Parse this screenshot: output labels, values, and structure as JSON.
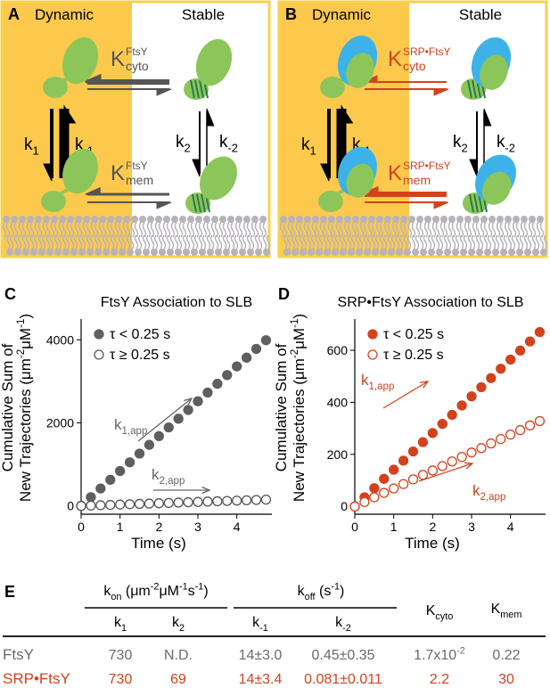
{
  "panels": [
    {
      "label": "A",
      "left": "Dynamic",
      "right": "Stable",
      "color": "#555555",
      "srp": false,
      "K_top": [
        {
          "text": "K"
        },
        {
          "text": "FtsY",
          "pos": "sup"
        },
        {
          "text": "cyto",
          "pos": "sub"
        }
      ],
      "K_bottom": [
        {
          "text": "K"
        },
        {
          "text": "FtsY",
          "pos": "sup"
        },
        {
          "text": "mem",
          "pos": "sub"
        }
      ],
      "rates": [
        [
          {
            "text": "k"
          },
          {
            "text": "1",
            "pos": "sub"
          }
        ],
        [
          {
            "text": "k"
          },
          {
            "text": "-1",
            "pos": "sub"
          }
        ],
        [
          {
            "text": "k"
          },
          {
            "text": "2",
            "pos": "sub"
          }
        ],
        [
          {
            "text": "k"
          },
          {
            "text": "-2",
            "pos": "sub"
          }
        ]
      ]
    },
    {
      "label": "B",
      "left": "Dynamic",
      "right": "Stable",
      "color": "#d4421c",
      "srp": true,
      "K_top": [
        {
          "text": "K"
        },
        {
          "text": "SRP•FtsY",
          "pos": "sup"
        },
        {
          "text": "cyto",
          "pos": "sub"
        }
      ],
      "K_bottom": [
        {
          "text": "K"
        },
        {
          "text": "SRP•FtsY",
          "pos": "sup"
        },
        {
          "text": "mem",
          "pos": "sub"
        }
      ],
      "rates": [
        [
          {
            "text": "k"
          },
          {
            "text": "1",
            "pos": "sub"
          }
        ],
        [
          {
            "text": "k"
          },
          {
            "text": "-1",
            "pos": "sub"
          }
        ],
        [
          {
            "text": "k"
          },
          {
            "text": "2",
            "pos": "sub"
          }
        ],
        [
          {
            "text": "k"
          },
          {
            "text": "-2",
            "pos": "sub"
          }
        ]
      ]
    }
  ],
  "chart_data": [
    {
      "type": "scatter",
      "label": "C",
      "title": "FtsY Association to SLB",
      "xlabel": "Time (s)",
      "ylabel": [
        [
          {
            "text": "Cumulative Sum of"
          }
        ],
        [
          {
            "text": "New Trajectories (μm"
          },
          {
            "text": "-2",
            "pos": "sup"
          },
          {
            "text": "μM"
          },
          {
            "text": "-1",
            "pos": "sup"
          },
          {
            "text": ")"
          }
        ]
      ],
      "xlim": [
        0,
        4.9
      ],
      "xticks": [
        0,
        1,
        2,
        3,
        4
      ],
      "ylim": [
        -200,
        4500
      ],
      "yticks": [
        0,
        2000,
        4000
      ],
      "x": [
        0,
        0.25,
        0.5,
        0.75,
        1,
        1.25,
        1.5,
        1.75,
        2,
        2.25,
        2.5,
        2.75,
        3,
        3.25,
        3.5,
        3.75,
        4,
        4.25,
        4.5,
        4.75
      ],
      "series": [
        {
          "name": "τ < 0.25 s",
          "color": "#5f5f5f",
          "filled": true,
          "values": [
            0,
            210,
            420,
            630,
            840,
            1050,
            1260,
            1470,
            1680,
            1890,
            2100,
            2310,
            2520,
            2730,
            2940,
            3150,
            3360,
            3570,
            3780,
            3990
          ]
        },
        {
          "name": "τ ≥ 0.25 s",
          "color": "#555555",
          "filled": false,
          "values": [
            0,
            8,
            16,
            24,
            32,
            40,
            48,
            56,
            64,
            72,
            80,
            88,
            96,
            104,
            112,
            120,
            128,
            136,
            144,
            152
          ]
        }
      ],
      "annotation_color": "#666666",
      "annotations": [
        [
          {
            "text": "k"
          },
          {
            "text": "1,app",
            "pos": "sub"
          }
        ],
        [
          {
            "text": "k"
          },
          {
            "text": "2,app",
            "pos": "sub"
          }
        ]
      ]
    },
    {
      "type": "scatter",
      "label": "D",
      "title": "SRP•FtsY Association to SLB",
      "xlabel": "Time (s)",
      "ylabel": [
        [
          {
            "text": "Cumulative Sum of"
          }
        ],
        [
          {
            "text": "New Trajectories (μm"
          },
          {
            "text": "-2",
            "pos": "sup"
          },
          {
            "text": "μM"
          },
          {
            "text": "-1",
            "pos": "sup"
          },
          {
            "text": ")"
          }
        ]
      ],
      "xlim": [
        0,
        4.9
      ],
      "xticks": [
        0,
        1,
        2,
        3,
        4
      ],
      "ylim": [
        -30,
        720
      ],
      "yticks": [
        0,
        200,
        400,
        600
      ],
      "x": [
        0,
        0.25,
        0.5,
        0.75,
        1,
        1.25,
        1.5,
        1.75,
        2,
        2.25,
        2.5,
        2.75,
        3,
        3.25,
        3.5,
        3.75,
        4,
        4.25,
        4.5,
        4.75
      ],
      "series": [
        {
          "name": "τ < 0.25 s",
          "color": "#d4421c",
          "filled": true,
          "values": [
            0,
            35,
            70,
            106,
            141,
            176,
            211,
            247,
            282,
            317,
            352,
            388,
            423,
            458,
            493,
            529,
            564,
            599,
            634,
            670
          ]
        },
        {
          "name": "τ ≥ 0.25 s",
          "color": "#d4421c",
          "filled": false,
          "values": [
            0,
            17,
            35,
            52,
            69,
            86,
            104,
            121,
            138,
            155,
            173,
            190,
            207,
            224,
            242,
            259,
            276,
            293,
            311,
            328
          ]
        }
      ],
      "annotation_color": "#d4421c",
      "annotations": [
        [
          {
            "text": "k"
          },
          {
            "text": "1,app",
            "pos": "sub"
          }
        ],
        [
          {
            "text": "k"
          },
          {
            "text": "2,app",
            "pos": "sub"
          }
        ]
      ]
    }
  ],
  "table": {
    "label": "E",
    "group_headers": [
      [
        {
          "text": "k"
        },
        {
          "text": "on",
          "pos": "sub"
        },
        {
          "text": " (μm"
        },
        {
          "text": "-2",
          "pos": "sup"
        },
        {
          "text": "μM"
        },
        {
          "text": "-1",
          "pos": "sup"
        },
        {
          "text": "s"
        },
        {
          "text": "-1",
          "pos": "sup"
        },
        {
          "text": ")"
        }
      ],
      [
        {
          "text": "k"
        },
        {
          "text": "off",
          "pos": "sub"
        },
        {
          "text": " (s"
        },
        {
          "text": "-1",
          "pos": "sup"
        },
        {
          "text": ")"
        }
      ]
    ],
    "columns": [
      [
        {
          "text": "k"
        },
        {
          "text": "1",
          "pos": "sub"
        }
      ],
      [
        {
          "text": "k"
        },
        {
          "text": "2",
          "pos": "sub"
        }
      ],
      [
        {
          "text": "k"
        },
        {
          "text": "-1",
          "pos": "sub"
        }
      ],
      [
        {
          "text": "k"
        },
        {
          "text": "-2",
          "pos": "sub"
        }
      ],
      [
        {
          "text": "K"
        },
        {
          "text": "cyto",
          "pos": "sub"
        }
      ],
      [
        {
          "text": "K"
        },
        {
          "text": "mem",
          "pos": "sub"
        }
      ]
    ],
    "rows": [
      {
        "name": "FtsY",
        "color": "#6b6b6b",
        "cells": [
          [
            {
              "text": "730"
            }
          ],
          [
            {
              "text": "N.D."
            }
          ],
          [
            {
              "text": "14±3.0"
            }
          ],
          [
            {
              "text": "0.45±0.35"
            }
          ],
          [
            {
              "text": "1.7x10"
            },
            {
              "text": "-2",
              "pos": "sup"
            }
          ],
          [
            {
              "text": "0.22"
            }
          ]
        ]
      },
      {
        "name": "SRP•FtsY",
        "color": "#d4421c",
        "cells": [
          [
            {
              "text": "730"
            }
          ],
          [
            {
              "text": "69"
            }
          ],
          [
            {
              "text": "14±3.4"
            }
          ],
          [
            {
              "text": "0.081±0.011"
            }
          ],
          [
            {
              "text": "2.2"
            }
          ],
          [
            {
              "text": "30"
            }
          ]
        ]
      }
    ]
  }
}
